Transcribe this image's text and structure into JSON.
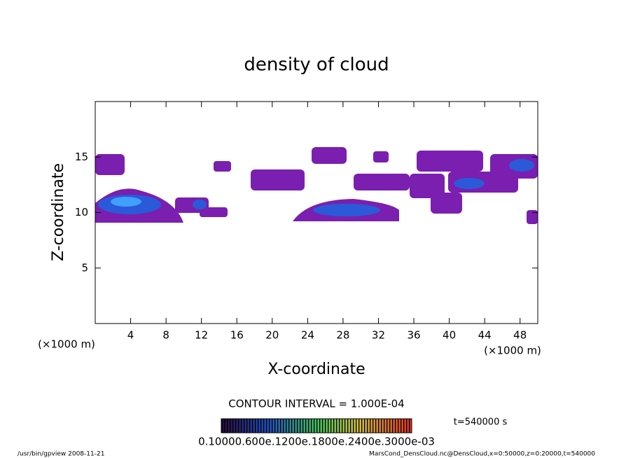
{
  "chart_data": {
    "type": "contour",
    "title": "density of cloud",
    "x_label": "X-coordinate",
    "y_label": "Z-coordinate",
    "x_unit": "(×1000 m)",
    "y_unit": "(×1000 m)",
    "xlim": [
      0,
      50
    ],
    "ylim": [
      0,
      20
    ],
    "xticks": [
      4,
      8,
      12,
      16,
      20,
      24,
      28,
      32,
      36,
      40,
      44,
      48
    ],
    "yticks": [
      5,
      10,
      15
    ],
    "contour_interval": "CONTOUR INTERVAL = 1.000E-04",
    "colorbar_label": "0.10000.600e.1200e.1800e.2400e.3000e-03",
    "time": "t=540000 s",
    "footer_left": "/usr/bin/gpview   2008-11-21",
    "footer_right": "MarsCond_DensCloud.nc@DensCloud,x=0:50000,z=0:20000,t=540000"
  }
}
